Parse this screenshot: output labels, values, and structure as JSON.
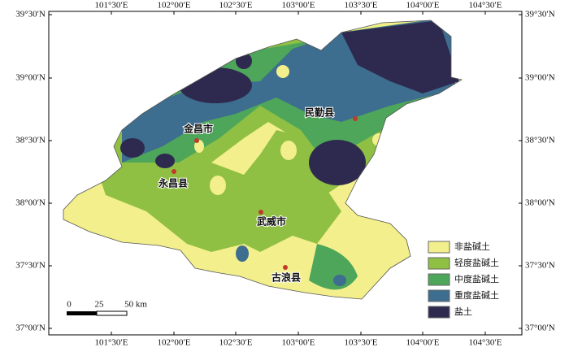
{
  "map": {
    "lon_ticks": [
      "101°30′E",
      "102°00′E",
      "102°30′E",
      "103°00′E",
      "103°30′E",
      "104°00′E",
      "104°30′E"
    ],
    "lat_ticks": [
      "39°30′N",
      "39°00′N",
      "38°30′N",
      "38°00′N",
      "37°30′N",
      "37°00′N"
    ],
    "places": [
      "金昌市",
      "民勤县",
      "永昌县",
      "武威市",
      "古浪县"
    ],
    "legend": [
      "非盐碱土",
      "轻度盐碱土",
      "中度盐碱土",
      "重度盐碱土",
      "盐土"
    ],
    "scale": [
      "0",
      "25",
      "50 km"
    ]
  }
}
